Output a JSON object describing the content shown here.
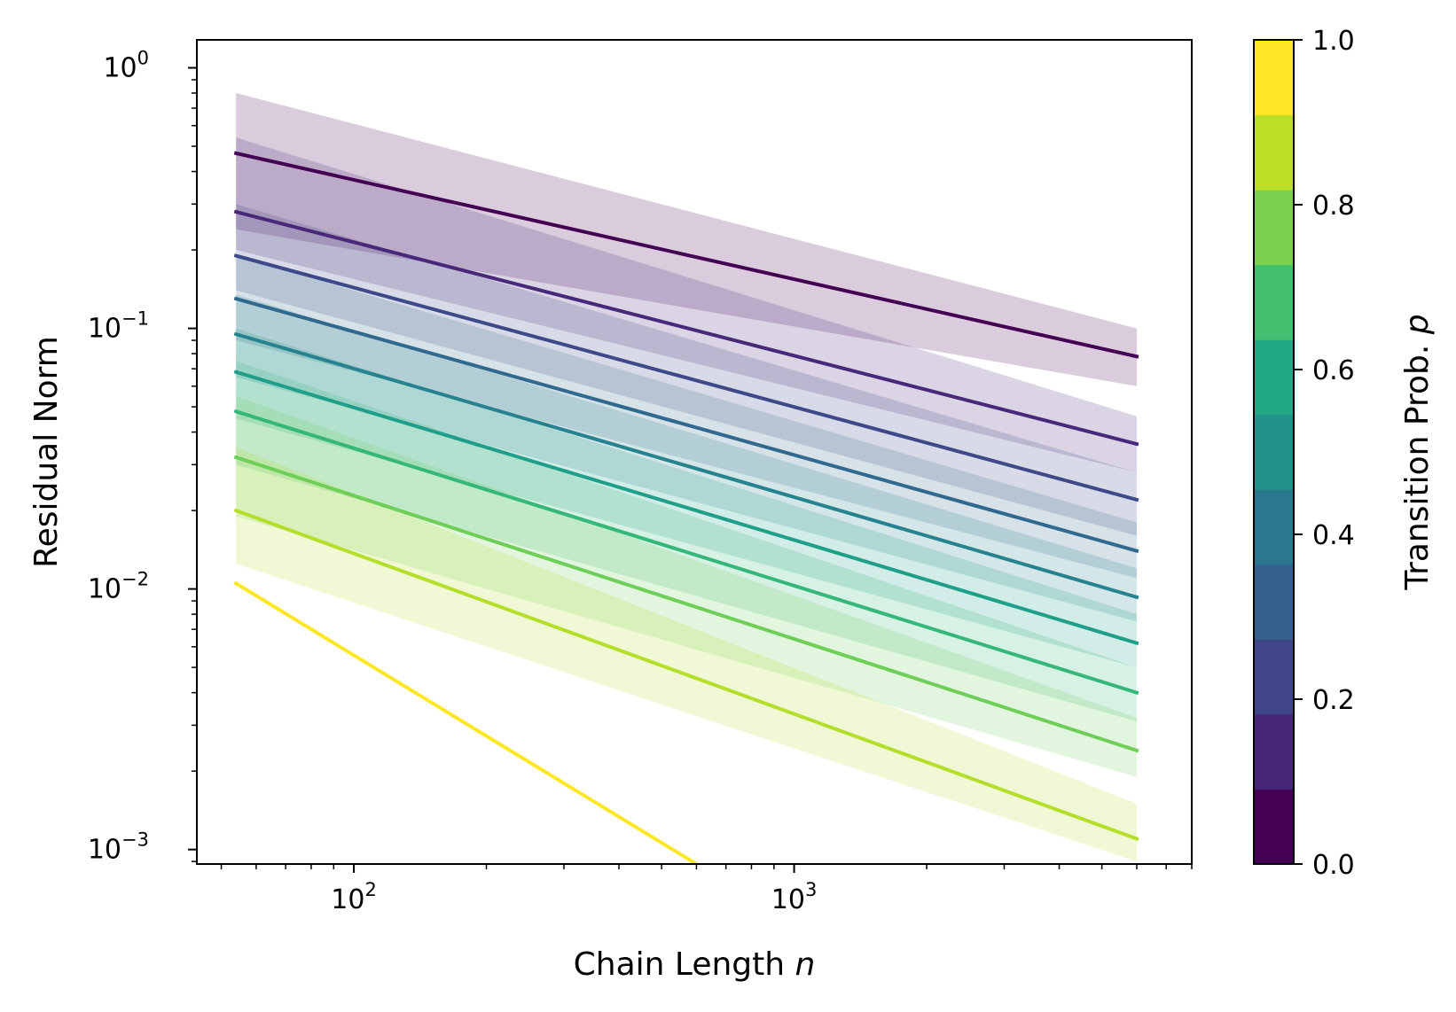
{
  "chart_data": {
    "type": "line",
    "xlabel": "Chain Length",
    "xlabel_var": "n",
    "ylabel": "Residual Norm",
    "xscale": "log",
    "yscale": "log",
    "xlim": [
      44,
      8000
    ],
    "ylim": [
      0.00088,
      1.28
    ],
    "grid": false,
    "x_ticks": [
      {
        "value": 100,
        "base": "10",
        "exp": "2"
      },
      {
        "value": 1000,
        "base": "10",
        "exp": "3"
      }
    ],
    "y_ticks": [
      {
        "value": 0.001,
        "base": "10",
        "exp": "−3"
      },
      {
        "value": 0.01,
        "base": "10",
        "exp": "−2"
      },
      {
        "value": 0.1,
        "base": "10",
        "exp": "−1"
      },
      {
        "value": 1,
        "base": "10",
        "exp": "0"
      }
    ],
    "colorbar": {
      "label": "Transition Prob.",
      "label_var": "p",
      "range": [
        0,
        1
      ],
      "ticks": [
        {
          "value": 0.0,
          "label": "0.0"
        },
        {
          "value": 0.2,
          "label": "0.2"
        },
        {
          "value": 0.4,
          "label": "0.4"
        },
        {
          "value": 0.6,
          "label": "0.6"
        },
        {
          "value": 0.8,
          "label": "0.8"
        },
        {
          "value": 1.0,
          "label": "1.0"
        }
      ],
      "bins": [
        {
          "from": 0.0,
          "to": 0.1,
          "color": "#440154"
        },
        {
          "from": 0.1,
          "to": 0.2,
          "color": "#482475"
        },
        {
          "from": 0.2,
          "to": 0.3,
          "color": "#414487"
        },
        {
          "from": 0.3,
          "to": 0.4,
          "color": "#355f8d"
        },
        {
          "from": 0.4,
          "to": 0.5,
          "color": "#2a788e"
        },
        {
          "from": 0.5,
          "to": 0.6,
          "color": "#21918c"
        },
        {
          "from": 0.6,
          "to": 0.7,
          "color": "#22a884"
        },
        {
          "from": 0.7,
          "to": 0.8,
          "color": "#44bf70"
        },
        {
          "from": 0.8,
          "to": 0.9,
          "color": "#7ad151"
        },
        {
          "from": 0.9,
          "to": 1.0,
          "color": "#bddf26"
        },
        {
          "from": 1.0,
          "to": 1.0,
          "color": "#fde725"
        }
      ]
    },
    "x": [
      54,
      6000
    ],
    "series": [
      {
        "p": 0.0,
        "color": "#440154",
        "values": [
          0.47,
          0.078
        ],
        "band_low": [
          0.24,
          0.06
        ],
        "band_high": [
          0.8,
          0.1
        ]
      },
      {
        "p": 0.1,
        "color": "#482878",
        "values": [
          0.28,
          0.036
        ],
        "band_low": [
          0.2,
          0.028
        ],
        "band_high": [
          0.54,
          0.046
        ]
      },
      {
        "p": 0.2,
        "color": "#3e4989",
        "values": [
          0.19,
          0.022
        ],
        "band_low": [
          0.14,
          0.016
        ],
        "band_high": [
          0.3,
          0.028
        ]
      },
      {
        "p": 0.3,
        "color": "#31688e",
        "values": [
          0.13,
          0.014
        ],
        "band_low": [
          0.09,
          0.011
        ],
        "band_high": [
          0.19,
          0.018
        ]
      },
      {
        "p": 0.4,
        "color": "#26828e",
        "values": [
          0.095,
          0.0093
        ],
        "band_low": [
          0.065,
          0.0075
        ],
        "band_high": [
          0.135,
          0.012
        ]
      },
      {
        "p": 0.5,
        "color": "#1f9e89",
        "values": [
          0.068,
          0.0062
        ],
        "band_low": [
          0.045,
          0.005
        ],
        "band_high": [
          0.1,
          0.008
        ]
      },
      {
        "p": 0.6,
        "color": "#35b779",
        "values": [
          0.048,
          0.004
        ],
        "band_low": [
          0.03,
          0.0031
        ],
        "band_high": [
          0.075,
          0.005
        ]
      },
      {
        "p": 0.7,
        "color": "#6ece58",
        "values": [
          0.032,
          0.0024
        ],
        "band_low": [
          0.019,
          0.0019
        ],
        "band_high": [
          0.055,
          0.0032
        ]
      },
      {
        "p": 0.8,
        "color": "#b5de2b",
        "values": [
          0.02,
          0.0011
        ],
        "band_low": [
          0.0125,
          0.0009
        ],
        "band_high": [
          0.035,
          0.0015
        ]
      },
      {
        "p": 0.9,
        "color": "#fde725",
        "values": [
          0.0105,
          0.00088
        ],
        "x_end": 600
      }
    ]
  }
}
